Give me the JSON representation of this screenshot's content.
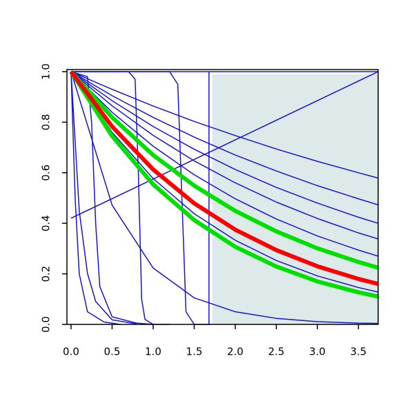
{
  "chart_data": {
    "type": "line",
    "xlim": [
      -0.05,
      3.74
    ],
    "ylim": [
      0,
      1
    ],
    "xticks": [
      {
        "value": 0,
        "label": "0.0"
      },
      {
        "value": 0.5,
        "label": "0.5"
      },
      {
        "value": 1,
        "label": "1.0"
      },
      {
        "value": 1.5,
        "label": "1.5"
      },
      {
        "value": 2,
        "label": "2.0"
      },
      {
        "value": 2.5,
        "label": "2.5"
      },
      {
        "value": 3,
        "label": "3.0"
      },
      {
        "value": 3.5,
        "label": "3.5"
      }
    ],
    "yticks": [
      {
        "value": 0,
        "label": "0.0"
      },
      {
        "value": 0.2,
        "label": "0.2"
      },
      {
        "value": 0.4,
        "label": "0.4"
      },
      {
        "value": 0.6,
        "label": "0.6"
      },
      {
        "value": 0.8,
        "label": "0.8"
      },
      {
        "value": 1,
        "label": "1.0"
      }
    ],
    "default_color": "#1414d8",
    "shade": {
      "color": "#deeaea",
      "x": [
        1.72,
        3.74
      ],
      "y": [
        0,
        0.99
      ]
    },
    "series": [
      {
        "x": [
          0,
          0.5,
          1,
          1.5,
          2,
          2.5,
          3,
          3.5,
          3.74
        ],
        "values": [
          1,
          0.93,
          0.864,
          0.803,
          0.747,
          0.694,
          0.645,
          0.6,
          0.579
        ]
      },
      {
        "x": [
          0,
          0.5,
          1,
          1.5,
          2,
          2.5,
          3,
          3.5,
          3.74
        ],
        "values": [
          1,
          0.905,
          0.819,
          0.741,
          0.67,
          0.607,
          0.549,
          0.497,
          0.473
        ]
      },
      {
        "x": [
          0,
          0.5,
          1,
          1.5,
          2,
          2.5,
          3,
          3.5,
          3.74
        ],
        "values": [
          1,
          0.885,
          0.783,
          0.693,
          0.613,
          0.542,
          0.48,
          0.424,
          0.4
        ]
      },
      {
        "x": [
          0,
          0.5,
          1,
          1.5,
          2,
          2.5,
          3,
          3.5,
          3.74
        ],
        "values": [
          1,
          0.865,
          0.748,
          0.647,
          0.56,
          0.484,
          0.419,
          0.362,
          0.338
        ]
      },
      {
        "x": [
          0,
          0.5,
          1,
          1.5,
          2,
          2.5,
          3,
          3.5,
          3.74
        ],
        "values": [
          1,
          0.839,
          0.705,
          0.592,
          0.497,
          0.417,
          0.35,
          0.294,
          0.27
        ]
      },
      {
        "x": [
          0,
          0.5,
          1,
          1.5,
          2,
          2.5,
          3,
          3.5,
          3.74
        ],
        "values": [
          1,
          0.76,
          0.577,
          0.438,
          0.333,
          0.253,
          0.192,
          0.146,
          0.128
        ]
      },
      {
        "x": [
          0,
          0.5,
          1,
          1.5,
          2,
          2.5,
          3,
          3.5,
          3.74
        ],
        "values": [
          1,
          0.472,
          0.223,
          0.105,
          0.05,
          0.024,
          0.011,
          0.005,
          0.004
        ]
      },
      {
        "x": [
          0,
          0.1,
          0.2,
          0.3,
          0.5,
          0.8
        ],
        "values": [
          1,
          0.449,
          0.202,
          0.091,
          0.018,
          0.002
        ]
      },
      {
        "x": [
          0,
          0.02,
          0.05,
          0.1,
          0.2,
          0.4,
          0.6
        ],
        "values": [
          1,
          0.8,
          0.5,
          0.2,
          0.05,
          0.01,
          0
        ]
      },
      {
        "x": [
          0,
          0.2,
          0.25,
          0.3,
          0.35,
          0.5,
          0.8,
          1.0
        ],
        "values": [
          1,
          0.98,
          0.8,
          0.4,
          0.15,
          0.03,
          0.005,
          0
        ]
      },
      {
        "x": [
          0,
          0.7,
          0.78,
          0.82,
          0.86,
          0.9,
          1.0,
          1.2
        ],
        "values": [
          1,
          1,
          0.97,
          0.6,
          0.1,
          0.02,
          0,
          0
        ]
      },
      {
        "x": [
          0,
          1.2,
          1.3,
          1.35,
          1.4,
          1.5,
          1.7
        ],
        "values": [
          1,
          1,
          0.95,
          0.5,
          0.05,
          0,
          0
        ]
      },
      {
        "x": [
          1.68,
          1.68
        ],
        "values": [
          0,
          1
        ]
      },
      {
        "x": [
          0,
          3.74
        ],
        "values": [
          0.42,
          1
        ]
      },
      {
        "x": [
          0,
          3.74
        ],
        "values": [
          1,
          1
        ]
      },
      {
        "color": "#00e000",
        "x": [
          0,
          0.5,
          1,
          1.5,
          2,
          2.5,
          3,
          3.5,
          3.74
        ],
        "values": [
          1,
          0.819,
          0.67,
          0.549,
          0.449,
          0.368,
          0.301,
          0.247,
          0.224
        ]
      },
      {
        "color": "#00e000",
        "x": [
          0,
          0.5,
          1,
          1.5,
          2,
          2.5,
          3,
          3.5,
          3.74
        ],
        "values": [
          1,
          0.745,
          0.554,
          0.413,
          0.307,
          0.229,
          0.17,
          0.127,
          0.11
        ]
      },
      {
        "color": "#ff0000",
        "x": [
          0,
          0.5,
          1,
          1.5,
          2,
          2.5,
          3,
          3.5,
          3.74
        ],
        "values": [
          1,
          0.783,
          0.613,
          0.479,
          0.375,
          0.294,
          0.23,
          0.18,
          0.16
        ]
      }
    ]
  }
}
